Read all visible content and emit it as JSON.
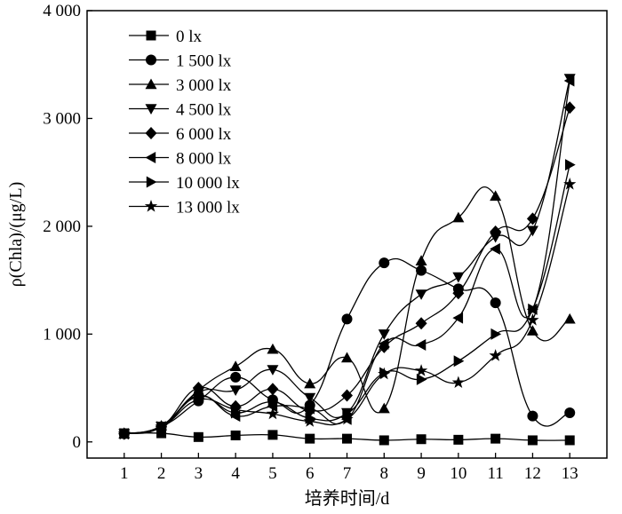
{
  "chart_data": {
    "type": "line",
    "xlabel": "培养时间/d",
    "ylabel": "ρ(Chla)/(μg/L)",
    "x": [
      1,
      2,
      3,
      4,
      5,
      6,
      7,
      8,
      9,
      10,
      11,
      12,
      13
    ],
    "xlim": [
      0,
      14
    ],
    "ylim": [
      -150,
      4000
    ],
    "x_ticks": [
      {
        "v": 1,
        "label": "1"
      },
      {
        "v": 2,
        "label": "2"
      },
      {
        "v": 3,
        "label": "3"
      },
      {
        "v": 4,
        "label": "4"
      },
      {
        "v": 5,
        "label": "5"
      },
      {
        "v": 6,
        "label": "6"
      },
      {
        "v": 7,
        "label": "7"
      },
      {
        "v": 8,
        "label": "8"
      },
      {
        "v": 9,
        "label": "9"
      },
      {
        "v": 10,
        "label": "10"
      },
      {
        "v": 11,
        "label": "11"
      },
      {
        "v": 12,
        "label": "12"
      },
      {
        "v": 13,
        "label": "13"
      }
    ],
    "y_ticks": [
      {
        "v": 0,
        "label": "0"
      },
      {
        "v": 1000,
        "label": "1 000"
      },
      {
        "v": 2000,
        "label": "2 000"
      },
      {
        "v": 3000,
        "label": "3 000"
      },
      {
        "v": 4000,
        "label": "4 000"
      }
    ],
    "grid": false,
    "legend_position": "top-left",
    "series": [
      {
        "name": "0 lx",
        "marker": "square",
        "values": [
          80,
          80,
          45,
          60,
          65,
          30,
          30,
          15,
          25,
          20,
          30,
          15,
          15
        ]
      },
      {
        "name": "1 500 lx",
        "marker": "circle",
        "values": [
          75,
          140,
          380,
          600,
          390,
          340,
          1140,
          1660,
          1590,
          1420,
          1290,
          240,
          270
        ]
      },
      {
        "name": "3 000 lx",
        "marker": "triangle-up",
        "values": [
          75,
          150,
          480,
          700,
          860,
          540,
          780,
          310,
          1680,
          2080,
          2280,
          1030,
          1140
        ]
      },
      {
        "name": "4 500 lx",
        "marker": "triangle-down",
        "values": [
          75,
          145,
          460,
          480,
          670,
          410,
          270,
          1000,
          1370,
          1530,
          1900,
          1960,
          3370
        ]
      },
      {
        "name": "6 000 lx",
        "marker": "diamond",
        "values": [
          75,
          140,
          500,
          330,
          490,
          290,
          430,
          880,
          1100,
          1380,
          1950,
          2070,
          3100
        ]
      },
      {
        "name": "8 000 lx",
        "marker": "triangle-left",
        "values": [
          75,
          140,
          430,
          240,
          330,
          310,
          210,
          910,
          900,
          1150,
          1790,
          1230,
          3350
        ]
      },
      {
        "name": "10 000 lx",
        "marker": "triangle-right",
        "values": [
          75,
          140,
          420,
          270,
          370,
          220,
          260,
          640,
          580,
          750,
          1000,
          1230,
          2570
        ]
      },
      {
        "name": "13 000 lx",
        "marker": "star",
        "values": [
          75,
          140,
          390,
          300,
          260,
          190,
          210,
          630,
          660,
          550,
          800,
          1130,
          2390
        ]
      }
    ]
  }
}
